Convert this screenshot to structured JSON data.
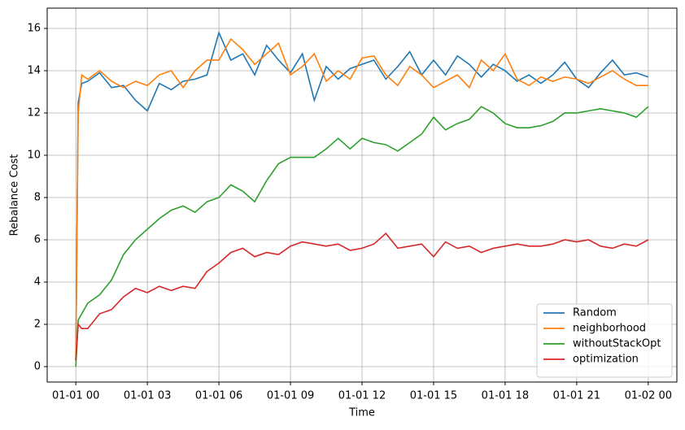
{
  "chart_data": {
    "type": "line",
    "x_label": "Time",
    "y_label": "Rebalance Cost",
    "x": [
      0,
      0.1,
      0.25,
      0.5,
      1,
      1.5,
      2,
      2.5,
      3,
      3.5,
      4,
      4.5,
      5,
      5.5,
      6,
      6.5,
      7,
      7.5,
      8,
      8.5,
      9,
      9.5,
      10,
      10.5,
      11,
      11.5,
      12,
      12.5,
      13,
      13.5,
      14,
      14.5,
      15,
      15.5,
      16,
      16.5,
      17,
      17.5,
      18,
      18.5,
      19,
      19.5,
      20,
      20.5,
      21,
      21.5,
      22,
      22.5,
      23,
      23.5,
      24
    ],
    "series": [
      {
        "name": "Random",
        "color": "#1f77b4",
        "values": [
          0.3,
          12.5,
          13.4,
          13.5,
          13.9,
          13.2,
          13.3,
          12.6,
          12.1,
          13.4,
          13.1,
          13.5,
          13.6,
          13.8,
          15.8,
          14.5,
          14.8,
          13.8,
          15.2,
          14.5,
          13.9,
          14.8,
          12.6,
          14.2,
          13.6,
          14.1,
          14.3,
          14.5,
          13.6,
          14.2,
          14.9,
          13.8,
          14.5,
          13.8,
          14.7,
          14.3,
          13.7,
          14.3,
          14.0,
          13.5,
          13.8,
          13.4,
          13.8,
          14.4,
          13.6,
          13.2,
          13.9,
          14.5,
          13.8,
          13.9,
          13.7
        ]
      },
      {
        "name": "neighborhood",
        "color": "#ff7f0e",
        "values": [
          0.3,
          12.0,
          13.8,
          13.6,
          14.0,
          13.5,
          13.2,
          13.5,
          13.3,
          13.8,
          14.0,
          13.2,
          14.0,
          14.5,
          14.5,
          15.5,
          15.0,
          14.3,
          14.8,
          15.3,
          13.8,
          14.2,
          14.8,
          13.5,
          14.0,
          13.6,
          14.6,
          14.7,
          13.8,
          13.3,
          14.2,
          13.8,
          13.2,
          13.5,
          13.8,
          13.2,
          14.5,
          14.0,
          14.8,
          13.6,
          13.3,
          13.7,
          13.5,
          13.7,
          13.6,
          13.4,
          13.7,
          14.0,
          13.6,
          13.3,
          13.3
        ]
      },
      {
        "name": "withoutStackOpt",
        "color": "#2ca02c",
        "values": [
          0,
          2.2,
          2.5,
          3.0,
          3.4,
          4.1,
          5.3,
          6.0,
          6.5,
          7.0,
          7.4,
          7.6,
          7.3,
          7.8,
          8.0,
          8.6,
          8.3,
          7.8,
          8.8,
          9.6,
          9.9,
          9.9,
          9.9,
          10.3,
          10.8,
          10.3,
          10.8,
          10.6,
          10.5,
          10.2,
          10.6,
          11.0,
          11.8,
          11.2,
          11.5,
          11.7,
          12.3,
          12.0,
          11.5,
          11.3,
          11.3,
          11.4,
          11.6,
          12.0,
          12.0,
          12.1,
          12.2,
          12.1,
          12.0,
          11.8,
          12.3
        ]
      },
      {
        "name": "optimization",
        "color": "#d62728",
        "values": [
          0.3,
          2.0,
          1.8,
          1.8,
          2.5,
          2.7,
          3.3,
          3.7,
          3.5,
          3.8,
          3.6,
          3.8,
          3.7,
          4.5,
          4.9,
          5.4,
          5.6,
          5.2,
          5.4,
          5.3,
          5.7,
          5.9,
          5.8,
          5.7,
          5.8,
          5.5,
          5.6,
          5.8,
          6.3,
          5.6,
          5.7,
          5.8,
          5.2,
          5.9,
          5.6,
          5.7,
          5.4,
          5.6,
          5.7,
          5.8,
          5.7,
          5.7,
          5.8,
          6.0,
          5.9,
          6.0,
          5.7,
          5.6,
          5.8,
          5.7,
          6.0
        ]
      }
    ],
    "xlim": [
      -1.2,
      25.2
    ],
    "xticks": [
      {
        "value": 0,
        "label": "01-01 00"
      },
      {
        "value": 3,
        "label": "01-01 03"
      },
      {
        "value": 6,
        "label": "01-01 06"
      },
      {
        "value": 9,
        "label": "01-01 09"
      },
      {
        "value": 12,
        "label": "01-01 12"
      },
      {
        "value": 15,
        "label": "01-01 15"
      },
      {
        "value": 18,
        "label": "01-01 18"
      },
      {
        "value": 21,
        "label": "01-01 21"
      },
      {
        "value": 24,
        "label": "01-02 00"
      }
    ],
    "ylim": [
      -0.73,
      16.96
    ],
    "yticks": [
      0,
      2,
      4,
      6,
      8,
      10,
      12,
      14,
      16
    ],
    "grid": true,
    "legend": "lower right"
  }
}
